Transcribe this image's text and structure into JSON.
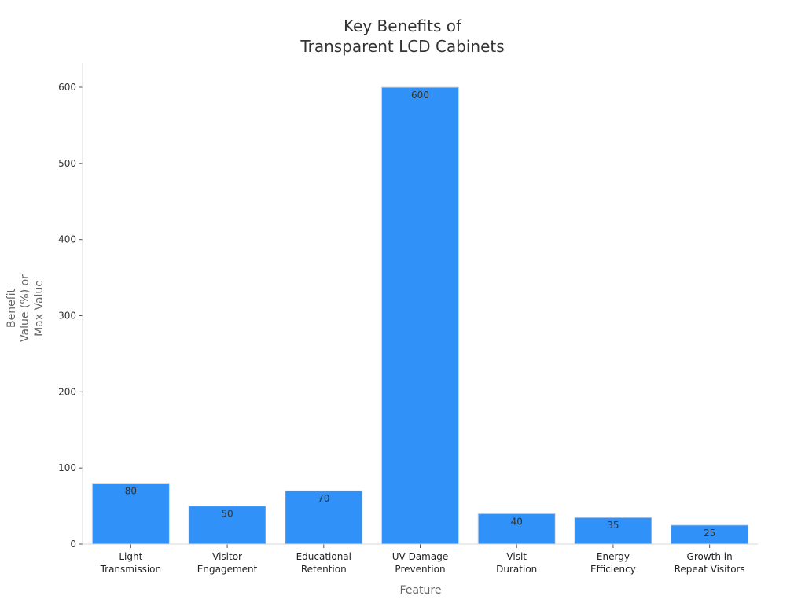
{
  "chart_data": {
    "type": "bar",
    "title": [
      "Key Benefits of",
      "Transparent LCD Cabinets"
    ],
    "xlabel": "Feature",
    "ylabel": [
      "Benefit",
      "Value (%) or",
      "Max Value"
    ],
    "categories": [
      [
        "Light",
        "Transmission"
      ],
      [
        "Visitor",
        "Engagement"
      ],
      [
        "Educational",
        "Retention"
      ],
      [
        "UV Damage",
        "Prevention"
      ],
      [
        "Visit",
        "Duration"
      ],
      [
        "Energy",
        "Efficiency"
      ],
      [
        "Growth in",
        "Repeat Visitors"
      ]
    ],
    "values": [
      80,
      50,
      70,
      600,
      40,
      35,
      25
    ],
    "ylim": [
      0,
      630
    ],
    "yticks": [
      0,
      100,
      200,
      300,
      400,
      500,
      600
    ],
    "grid": false,
    "legend": "none",
    "bar_color": "#3092f8",
    "bar_edge_color": "#dddddd"
  }
}
